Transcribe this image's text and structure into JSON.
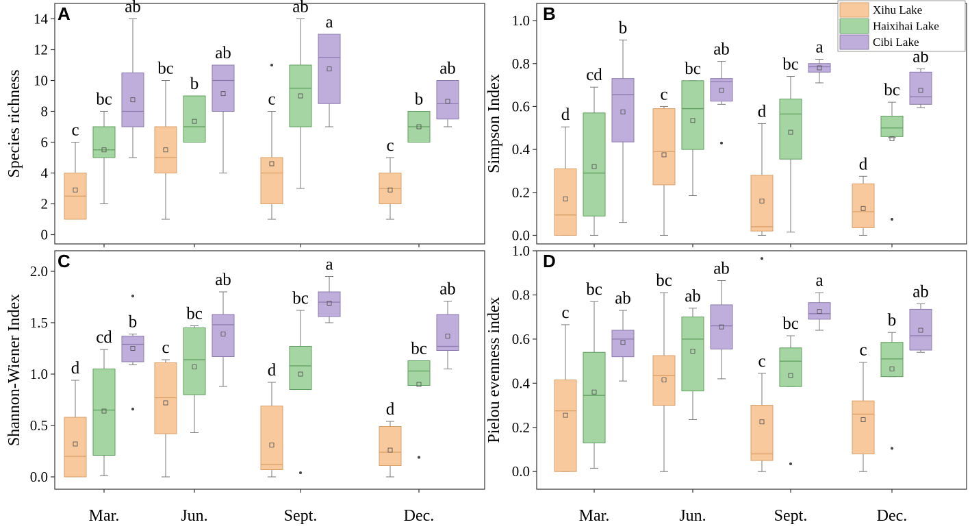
{
  "colors": {
    "xihu_fill": "#f8c99c",
    "xihu_stroke": "#d9a06a",
    "haixihai_fill": "#a5d5a2",
    "haixihai_stroke": "#5e9e5e",
    "cibi_fill": "#bfaedb",
    "cibi_stroke": "#8b7aae",
    "axis": "#333333",
    "whisker": "#7a7a7a"
  },
  "legend": {
    "entries": [
      {
        "label": "Xihu Lake",
        "color_key": "xihu"
      },
      {
        "label": "Haixihai Lake",
        "color_key": "haixihai"
      },
      {
        "label": "Cibi Lake",
        "color_key": "cibi"
      }
    ]
  },
  "x_categories": [
    "Mar.",
    "Jun.",
    "Sept.",
    "Dec."
  ],
  "chart_data": [
    {
      "panel": "A",
      "type": "box",
      "ylabel": "Species richness",
      "ylim": [
        -0.6,
        15
      ],
      "yticks": [
        0,
        2,
        4,
        6,
        8,
        10,
        12,
        14
      ],
      "tick_labels": [
        "0",
        "2",
        "4",
        "6",
        "8",
        "10",
        "12",
        "14"
      ],
      "categories": [
        "Mar.",
        "Jun.",
        "Sept.",
        "Dec."
      ],
      "series": [
        {
          "name": "Xihu Lake",
          "boxes": [
            {
              "min": 1,
              "q1": 1,
              "median": 2.5,
              "q3": 4,
              "max": 6,
              "mean": 2.9,
              "outliers": [],
              "letter": "c"
            },
            {
              "min": 1,
              "q1": 4,
              "median": 5,
              "q3": 7,
              "max": 10,
              "mean": 5.5,
              "outliers": [],
              "letter": "bc"
            },
            {
              "min": 1,
              "q1": 2,
              "median": 4,
              "q3": 5,
              "max": 8,
              "mean": 4.6,
              "outliers": [
                11
              ],
              "letter": "c"
            },
            {
              "min": 1,
              "q1": 2,
              "median": 3,
              "q3": 4,
              "max": 5,
              "mean": 2.9,
              "outliers": [],
              "letter": "c"
            }
          ]
        },
        {
          "name": "Haixihai Lake",
          "boxes": [
            {
              "min": 2,
              "q1": 5,
              "median": 5.5,
              "q3": 7,
              "max": 8,
              "mean": 5.5,
              "outliers": [],
              "letter": "bc"
            },
            {
              "min": 6,
              "q1": 6,
              "median": 7,
              "q3": 9,
              "max": 9,
              "mean": 7.35,
              "outliers": [],
              "letter": "b"
            },
            {
              "min": 3,
              "q1": 7,
              "median": 9.5,
              "q3": 11,
              "max": 14,
              "mean": 9,
              "outliers": [],
              "letter": "ab"
            },
            {
              "min": 6,
              "q1": 6,
              "median": 7,
              "q3": 8,
              "max": 8,
              "mean": 7,
              "outliers": [],
              "letter": "b"
            }
          ]
        },
        {
          "name": "Cibi Lake",
          "boxes": [
            {
              "min": 5,
              "q1": 7,
              "median": 8,
              "q3": 10.5,
              "max": 14,
              "mean": 8.75,
              "outliers": [],
              "letter": "ab"
            },
            {
              "min": 4,
              "q1": 8,
              "median": 10,
              "q3": 11,
              "max": 11,
              "mean": 9.15,
              "outliers": [],
              "letter": "ab"
            },
            {
              "min": 7,
              "q1": 8.5,
              "median": 11.5,
              "q3": 13,
              "max": 13,
              "mean": 10.75,
              "outliers": [],
              "letter": "a"
            },
            {
              "min": 7,
              "q1": 7.5,
              "median": 8.5,
              "q3": 10,
              "max": 10,
              "mean": 8.65,
              "outliers": [],
              "letter": "ab"
            }
          ]
        }
      ]
    },
    {
      "panel": "B",
      "type": "box",
      "ylabel": "Simpson Index",
      "ylim": [
        -0.04,
        1.08
      ],
      "yticks": [
        0.0,
        0.2,
        0.4,
        0.6,
        0.8,
        1.0
      ],
      "tick_labels": [
        "0.0",
        "0.2",
        "0.4",
        "0.6",
        "0.8",
        "1.0"
      ],
      "categories": [
        "Mar.",
        "Jun.",
        "Sept.",
        "Dec."
      ],
      "series": [
        {
          "name": "Xihu Lake",
          "boxes": [
            {
              "min": 0,
              "q1": 0,
              "median": 0.095,
              "q3": 0.31,
              "max": 0.505,
              "mean": 0.17,
              "outliers": [],
              "letter": "d"
            },
            {
              "min": 0,
              "q1": 0.235,
              "median": 0.39,
              "q3": 0.59,
              "max": 0.6,
              "mean": 0.375,
              "outliers": [],
              "letter": "c"
            },
            {
              "min": 0,
              "q1": 0.02,
              "median": 0.04,
              "q3": 0.28,
              "max": 0.52,
              "mean": 0.16,
              "outliers": [],
              "letter": "d"
            },
            {
              "min": 0,
              "q1": 0.035,
              "median": 0.11,
              "q3": 0.24,
              "max": 0.275,
              "mean": 0.125,
              "outliers": [],
              "letter": "d"
            }
          ]
        },
        {
          "name": "Haixihai Lake",
          "boxes": [
            {
              "min": 0,
              "q1": 0.09,
              "median": 0.29,
              "q3": 0.57,
              "max": 0.69,
              "mean": 0.32,
              "outliers": [],
              "letter": "cd"
            },
            {
              "min": 0.185,
              "q1": 0.4,
              "median": 0.59,
              "q3": 0.72,
              "max": 0.72,
              "mean": 0.535,
              "outliers": [],
              "letter": "bc"
            },
            {
              "min": 0.015,
              "q1": 0.355,
              "median": 0.565,
              "q3": 0.635,
              "max": 0.74,
              "mean": 0.48,
              "outliers": [],
              "letter": "bc"
            },
            {
              "min": 0.455,
              "q1": 0.46,
              "median": 0.5,
              "q3": 0.555,
              "max": 0.62,
              "mean": 0.45,
              "outliers": [
                0.075
              ],
              "letter": "bc"
            }
          ]
        },
        {
          "name": "Cibi Lake",
          "boxes": [
            {
              "min": 0.06,
              "q1": 0.435,
              "median": 0.655,
              "q3": 0.73,
              "max": 0.91,
              "mean": 0.575,
              "outliers": [],
              "letter": "b"
            },
            {
              "min": 0.61,
              "q1": 0.625,
              "median": 0.715,
              "q3": 0.73,
              "max": 0.81,
              "mean": 0.675,
              "outliers": [
                0.43
              ],
              "letter": "ab"
            },
            {
              "min": 0.71,
              "q1": 0.76,
              "median": 0.785,
              "q3": 0.8,
              "max": 0.82,
              "mean": 0.78,
              "outliers": [],
              "letter": "a"
            },
            {
              "min": 0.595,
              "q1": 0.61,
              "median": 0.645,
              "q3": 0.76,
              "max": 0.775,
              "mean": 0.675,
              "outliers": [],
              "letter": "ab"
            }
          ]
        }
      ]
    },
    {
      "panel": "C",
      "type": "box",
      "ylabel": "Shannon-Wiener Index",
      "ylim": [
        -0.12,
        2.2
      ],
      "yticks": [
        0.0,
        0.5,
        1.0,
        1.5,
        2.0
      ],
      "tick_labels": [
        "0.0",
        "0.5",
        "1.0",
        "1.5",
        "2.0"
      ],
      "categories": [
        "Mar.",
        "Jun.",
        "Sept.",
        "Dec."
      ],
      "series": [
        {
          "name": "Xihu Lake",
          "boxes": [
            {
              "min": 0,
              "q1": 0,
              "median": 0.2,
              "q3": 0.58,
              "max": 0.94,
              "mean": 0.32,
              "outliers": [],
              "letter": "d"
            },
            {
              "min": 0,
              "q1": 0.42,
              "median": 0.77,
              "q3": 1.11,
              "max": 1.14,
              "mean": 0.72,
              "outliers": [],
              "letter": "c"
            },
            {
              "min": 0,
              "q1": 0.07,
              "median": 0.12,
              "q3": 0.69,
              "max": 0.92,
              "mean": 0.31,
              "outliers": [],
              "letter": "d"
            },
            {
              "min": 0,
              "q1": 0.11,
              "median": 0.24,
              "q3": 0.49,
              "max": 0.54,
              "mean": 0.26,
              "outliers": [],
              "letter": "d"
            }
          ]
        },
        {
          "name": "Haixihai Lake",
          "boxes": [
            {
              "min": 0.01,
              "q1": 0.21,
              "median": 0.65,
              "q3": 1.05,
              "max": 1.24,
              "mean": 0.64,
              "outliers": [],
              "letter": "cd"
            },
            {
              "min": 0.43,
              "q1": 0.8,
              "median": 1.14,
              "q3": 1.45,
              "max": 1.47,
              "mean": 1.07,
              "outliers": [],
              "letter": "bc"
            },
            {
              "min": 0.85,
              "q1": 0.85,
              "median": 1.08,
              "q3": 1.27,
              "max": 1.62,
              "mean": 1.0,
              "outliers": [
                0.04
              ],
              "letter": "bc"
            },
            {
              "min": 0.89,
              "q1": 0.89,
              "median": 1.03,
              "q3": 1.13,
              "max": 1.13,
              "mean": 0.9,
              "outliers": [
                0.19
              ],
              "letter": "bc"
            }
          ]
        },
        {
          "name": "Cibi Lake",
          "boxes": [
            {
              "min": 1.09,
              "q1": 1.12,
              "median": 1.29,
              "q3": 1.37,
              "max": 1.39,
              "mean": 1.25,
              "outliers": [
                0.66,
                1.76
              ],
              "letter": "b"
            },
            {
              "min": 0.88,
              "q1": 1.17,
              "median": 1.48,
              "q3": 1.58,
              "max": 1.8,
              "mean": 1.39,
              "outliers": [],
              "letter": "ab"
            },
            {
              "min": 1.5,
              "q1": 1.56,
              "median": 1.7,
              "q3": 1.8,
              "max": 1.95,
              "mean": 1.69,
              "outliers": [],
              "letter": "a"
            },
            {
              "min": 1.05,
              "q1": 1.23,
              "median": 1.27,
              "q3": 1.58,
              "max": 1.71,
              "mean": 1.37,
              "outliers": [],
              "letter": "ab"
            }
          ]
        }
      ]
    },
    {
      "panel": "D",
      "type": "box",
      "ylabel": "Pielou evenness index",
      "ylim": [
        -0.08,
        1.0
      ],
      "yticks": [
        0.0,
        0.2,
        0.4,
        0.6,
        0.8,
        1.0
      ],
      "tick_labels": [
        "0.0",
        "0.2",
        "0.4",
        "0.6",
        "0.8",
        "1.0"
      ],
      "categories": [
        "Mar.",
        "Jun.",
        "Sept.",
        "Dec."
      ],
      "series": [
        {
          "name": "Xihu Lake",
          "boxes": [
            {
              "min": 0,
              "q1": 0,
              "median": 0.275,
              "q3": 0.415,
              "max": 0.665,
              "mean": 0.255,
              "outliers": [],
              "letter": "c"
            },
            {
              "min": 0,
              "q1": 0.3,
              "median": 0.435,
              "q3": 0.525,
              "max": 0.81,
              "mean": 0.415,
              "outliers": [],
              "letter": "bc"
            },
            {
              "min": 0,
              "q1": 0.05,
              "median": 0.08,
              "q3": 0.3,
              "max": 0.445,
              "mean": 0.225,
              "outliers": [
                0.965
              ],
              "letter": "c"
            },
            {
              "min": 0,
              "q1": 0.08,
              "median": 0.26,
              "q3": 0.32,
              "max": 0.495,
              "mean": 0.235,
              "outliers": [],
              "letter": "c"
            }
          ]
        },
        {
          "name": "Haixihai Lake",
          "boxes": [
            {
              "min": 0.015,
              "q1": 0.13,
              "median": 0.345,
              "q3": 0.54,
              "max": 0.77,
              "mean": 0.36,
              "outliers": [],
              "letter": "bc"
            },
            {
              "min": 0.235,
              "q1": 0.365,
              "median": 0.6,
              "q3": 0.7,
              "max": 0.74,
              "mean": 0.545,
              "outliers": [],
              "letter": "ab"
            },
            {
              "min": 0.385,
              "q1": 0.385,
              "median": 0.5,
              "q3": 0.56,
              "max": 0.615,
              "mean": 0.435,
              "outliers": [
                0.035
              ],
              "letter": "bc"
            },
            {
              "min": 0.43,
              "q1": 0.43,
              "median": 0.51,
              "q3": 0.585,
              "max": 0.63,
              "mean": 0.465,
              "outliers": [
                0.105
              ],
              "letter": "b"
            }
          ]
        },
        {
          "name": "Cibi Lake",
          "boxes": [
            {
              "min": 0.41,
              "q1": 0.52,
              "median": 0.6,
              "q3": 0.64,
              "max": 0.73,
              "mean": 0.585,
              "outliers": [],
              "letter": "ab"
            },
            {
              "min": 0.42,
              "q1": 0.555,
              "median": 0.66,
              "q3": 0.755,
              "max": 0.865,
              "mean": 0.655,
              "outliers": [],
              "letter": "ab"
            },
            {
              "min": 0.64,
              "q1": 0.69,
              "median": 0.715,
              "q3": 0.765,
              "max": 0.81,
              "mean": 0.725,
              "outliers": [],
              "letter": "a"
            },
            {
              "min": 0.54,
              "q1": 0.55,
              "median": 0.615,
              "q3": 0.735,
              "max": 0.76,
              "mean": 0.64,
              "outliers": [],
              "letter": "ab"
            }
          ]
        }
      ]
    }
  ]
}
